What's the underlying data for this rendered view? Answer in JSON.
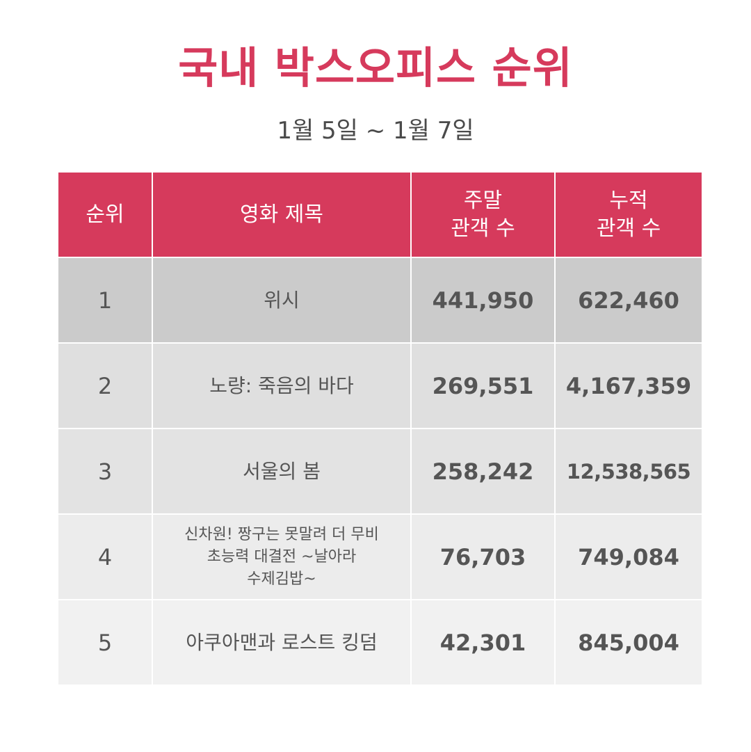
{
  "title": "국내 박스오피스 순위",
  "date_range": "1월 5일 ~ 1월 7일",
  "colors": {
    "accent": "#d63a5c",
    "text": "#555555"
  },
  "table": {
    "headers": {
      "rank": "순위",
      "title": "영화 제목",
      "weekend_line1": "주말",
      "weekend_line2": "관객 수",
      "total_line1": "누적",
      "total_line2": "관객 수"
    },
    "rows": [
      {
        "rank": "1",
        "title": "위시",
        "weekend": "441,950",
        "total": "622,460"
      },
      {
        "rank": "2",
        "title": "노량: 죽음의 바다",
        "weekend": "269,551",
        "total": "4,167,359"
      },
      {
        "rank": "3",
        "title": "서울의 봄",
        "weekend": "258,242",
        "total": "12,538,565"
      },
      {
        "rank": "4",
        "title_line1": "신차원! 짱구는 못말려 더 무비",
        "title_line2": "초능력 대결전 ~날아라",
        "title_line3": "수제김밥~",
        "weekend": "76,703",
        "total": "749,084"
      },
      {
        "rank": "5",
        "title": "아쿠아맨과 로스트 킹덤",
        "weekend": "42,301",
        "total": "845,004"
      }
    ]
  }
}
